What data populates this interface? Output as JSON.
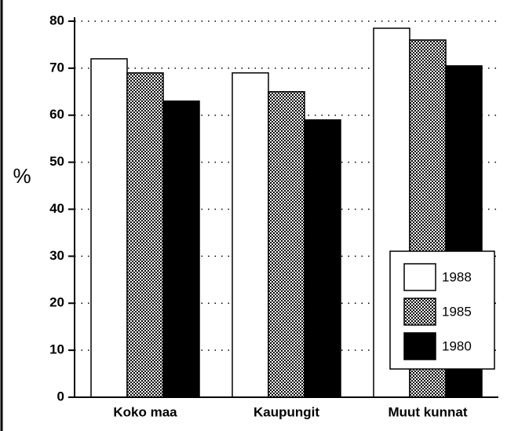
{
  "chart_data": {
    "type": "bar",
    "y_label": "%",
    "categories": [
      "Koko maa",
      "Kaupungit",
      "Muut kunnat"
    ],
    "series": [
      {
        "name": "1988",
        "color": "#ffffff",
        "values": [
          72,
          69,
          78.5
        ]
      },
      {
        "name": "1985",
        "color": "#8c8c8c",
        "values": [
          69,
          65,
          76
        ]
      },
      {
        "name": "1980",
        "color": "#000000",
        "values": [
          63,
          59,
          70.5
        ]
      }
    ],
    "ylim": [
      0,
      80
    ],
    "yticks": [
      0,
      10,
      20,
      30,
      40,
      50,
      60,
      70,
      80
    ],
    "grid": true,
    "legend": "lower right"
  }
}
